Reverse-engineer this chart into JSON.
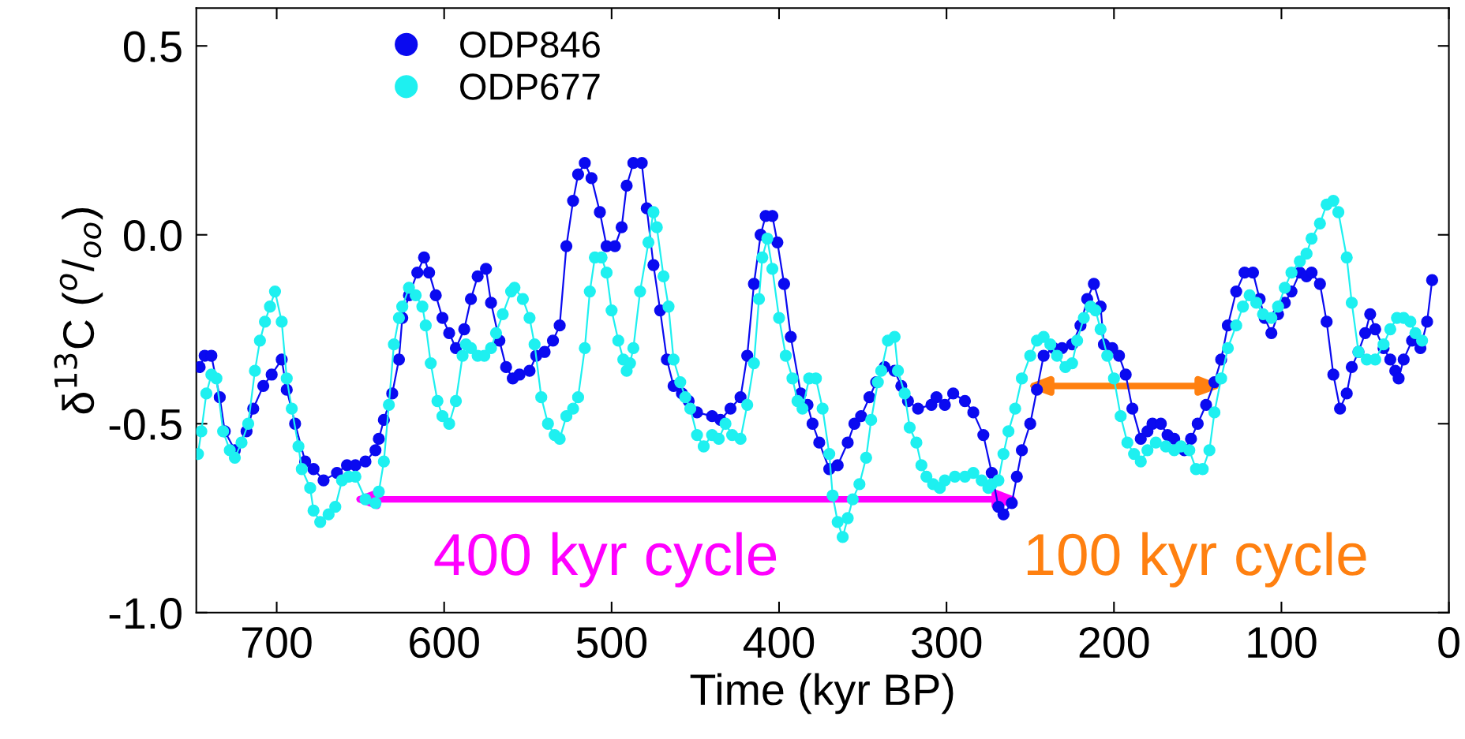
{
  "chart_data": {
    "type": "line",
    "xlabel": "Time (kyr BP)",
    "ylabel": "δ$^{13}$C ($^{o}$/$_{oo}$)",
    "xlim": [
      748,
      0
    ],
    "xticks": [
      700,
      600,
      500,
      400,
      300,
      200,
      100,
      0
    ],
    "ylim": [
      -1.0,
      0.6
    ],
    "yticks": [
      {
        "value": 0.5,
        "label": "0.5"
      },
      {
        "value": 0.0,
        "label": "0.0"
      },
      {
        "value": -0.5,
        "label": "-0.5"
      },
      {
        "value": -1.0,
        "label": "-1.0"
      }
    ],
    "marker": "circle",
    "line_style": "solid",
    "legend": "top left",
    "grid": false,
    "series": [
      {
        "name": "ODP846",
        "color": "#0a0af0",
        "x": [
          746,
          743,
          739,
          734,
          731,
          725,
          718,
          714,
          708,
          703,
          697,
          694,
          689,
          683,
          678,
          672,
          664,
          658,
          653,
          647,
          641,
          639,
          636,
          631,
          627,
          625,
          621,
          616,
          612,
          609,
          605,
          601,
          597,
          593,
          588,
          584,
          580,
          575,
          572,
          567,
          563,
          559,
          555,
          549,
          545,
          540,
          535,
          531,
          527,
          523,
          520,
          516,
          512,
          507,
          503,
          498,
          494,
          491,
          487,
          482,
          479,
          475,
          471,
          467,
          463,
          458,
          454,
          449,
          440,
          435,
          429,
          423,
          419,
          415,
          411,
          408,
          404,
          401,
          397,
          393,
          387,
          383,
          380,
          376,
          370,
          365,
          359,
          355,
          351,
          346,
          342,
          337,
          331,
          327,
          323,
          317,
          309,
          306,
          301,
          296,
          289,
          284,
          278,
          273,
          269,
          266,
          261,
          258,
          255,
          250,
          246,
          242,
          236,
          231,
          225,
          220,
          216,
          212,
          208,
          206,
          201,
          197,
          193,
          189,
          184,
          180,
          177,
          172,
          168,
          164,
          158,
          154,
          150,
          145,
          140,
          136,
          132,
          127,
          122,
          117,
          113,
          110,
          106,
          102,
          98,
          94,
          89,
          85,
          82,
          77,
          73,
          69,
          65,
          61,
          58,
          54,
          50,
          47,
          44,
          39,
          35,
          32,
          30,
          27,
          22,
          17,
          13,
          10
        ],
        "values": [
          -0.35,
          -0.32,
          -0.32,
          -0.43,
          -0.52,
          -0.57,
          -0.52,
          -0.46,
          -0.4,
          -0.37,
          -0.33,
          -0.41,
          -0.5,
          -0.6,
          -0.62,
          -0.65,
          -0.63,
          -0.61,
          -0.61,
          -0.6,
          -0.57,
          -0.54,
          -0.49,
          -0.42,
          -0.33,
          -0.22,
          -0.16,
          -0.1,
          -0.06,
          -0.1,
          -0.16,
          -0.22,
          -0.26,
          -0.3,
          -0.25,
          -0.17,
          -0.11,
          -0.09,
          -0.18,
          -0.28,
          -0.35,
          -0.38,
          -0.37,
          -0.36,
          -0.32,
          -0.31,
          -0.28,
          -0.24,
          -0.03,
          0.09,
          0.16,
          0.19,
          0.15,
          0.06,
          -0.03,
          -0.03,
          0.02,
          0.13,
          0.19,
          0.19,
          0.07,
          -0.08,
          -0.2,
          -0.33,
          -0.4,
          -0.42,
          -0.44,
          -0.47,
          -0.48,
          -0.49,
          -0.46,
          -0.43,
          -0.32,
          -0.13,
          0.0,
          0.05,
          0.05,
          -0.02,
          -0.13,
          -0.27,
          -0.42,
          -0.45,
          -0.5,
          -0.55,
          -0.62,
          -0.61,
          -0.55,
          -0.5,
          -0.48,
          -0.43,
          -0.39,
          -0.35,
          -0.36,
          -0.4,
          -0.44,
          -0.46,
          -0.45,
          -0.43,
          -0.45,
          -0.42,
          -0.44,
          -0.47,
          -0.53,
          -0.63,
          -0.72,
          -0.74,
          -0.71,
          -0.64,
          -0.57,
          -0.5,
          -0.41,
          -0.32,
          -0.3,
          -0.3,
          -0.29,
          -0.24,
          -0.17,
          -0.13,
          -0.19,
          -0.29,
          -0.3,
          -0.32,
          -0.37,
          -0.46,
          -0.54,
          -0.52,
          -0.5,
          -0.5,
          -0.53,
          -0.54,
          -0.57,
          -0.54,
          -0.5,
          -0.45,
          -0.39,
          -0.33,
          -0.24,
          -0.15,
          -0.1,
          -0.1,
          -0.17,
          -0.22,
          -0.26,
          -0.21,
          -0.18,
          -0.15,
          -0.1,
          -0.11,
          -0.1,
          -0.13,
          -0.23,
          -0.37,
          -0.46,
          -0.42,
          -0.35,
          -0.31,
          -0.26,
          -0.21,
          -0.25,
          -0.3,
          -0.33,
          -0.36,
          -0.38,
          -0.33,
          -0.28,
          -0.3,
          -0.23,
          -0.12
        ]
      },
      {
        "name": "ODP677",
        "color": "#1ef0f0",
        "x": [
          747,
          745,
          742,
          739,
          736,
          732,
          728,
          725,
          721,
          717,
          713,
          710,
          707,
          704,
          701,
          697,
          694,
          691,
          687,
          685,
          680,
          678,
          674,
          669,
          665,
          661,
          657,
          653,
          647,
          641,
          639,
          636,
          633,
          630,
          627,
          625,
          621,
          617,
          613,
          611,
          608,
          604,
          601,
          597,
          593,
          589,
          587,
          584,
          580,
          576,
          572,
          569,
          565,
          560,
          558,
          553,
          549,
          546,
          542,
          538,
          534,
          531,
          527,
          523,
          520,
          516,
          513,
          510,
          506,
          503,
          500,
          496,
          493,
          491,
          489,
          487,
          483,
          478,
          475,
          473,
          469,
          466,
          463,
          459,
          456,
          453,
          449,
          445,
          440,
          436,
          432,
          428,
          423,
          419,
          415,
          412,
          410,
          407,
          404,
          400,
          396,
          392,
          389,
          386,
          382,
          378,
          374,
          370,
          368,
          365,
          362,
          359,
          356,
          352,
          348,
          345,
          341,
          339,
          335,
          331,
          329,
          325,
          322,
          318,
          315,
          312,
          308,
          304,
          301,
          295,
          289,
          284,
          279,
          275,
          273,
          269,
          266,
          263,
          259,
          255,
          250,
          246,
          242,
          238,
          234,
          229,
          225,
          222,
          218,
          214,
          211,
          208,
          204,
          200,
          196,
          192,
          188,
          184,
          180,
          175,
          169,
          164,
          160,
          155,
          151,
          147,
          143,
          140,
          136,
          132,
          127,
          123,
          119,
          115,
          111,
          106,
          102,
          98,
          94,
          89,
          85,
          82,
          77,
          73,
          69,
          66,
          61,
          58,
          54,
          49,
          44,
          39,
          35,
          31,
          27,
          23,
          20,
          16
        ],
        "values": [
          -0.58,
          -0.52,
          -0.42,
          -0.37,
          -0.38,
          -0.52,
          -0.57,
          -0.59,
          -0.55,
          -0.5,
          -0.36,
          -0.28,
          -0.23,
          -0.19,
          -0.15,
          -0.23,
          -0.38,
          -0.46,
          -0.56,
          -0.62,
          -0.67,
          -0.73,
          -0.76,
          -0.74,
          -0.72,
          -0.65,
          -0.64,
          -0.64,
          -0.7,
          -0.71,
          -0.68,
          -0.6,
          -0.45,
          -0.29,
          -0.22,
          -0.19,
          -0.14,
          -0.16,
          -0.19,
          -0.24,
          -0.34,
          -0.44,
          -0.48,
          -0.5,
          -0.44,
          -0.32,
          -0.29,
          -0.3,
          -0.32,
          -0.32,
          -0.3,
          -0.26,
          -0.21,
          -0.15,
          -0.14,
          -0.17,
          -0.22,
          -0.29,
          -0.43,
          -0.5,
          -0.53,
          -0.54,
          -0.48,
          -0.46,
          -0.43,
          -0.3,
          -0.15,
          -0.06,
          -0.06,
          -0.1,
          -0.2,
          -0.28,
          -0.33,
          -0.36,
          -0.34,
          -0.3,
          -0.15,
          -0.02,
          0.06,
          0.02,
          -0.11,
          -0.19,
          -0.33,
          -0.39,
          -0.43,
          -0.46,
          -0.53,
          -0.56,
          -0.53,
          -0.54,
          -0.5,
          -0.53,
          -0.54,
          -0.45,
          -0.34,
          -0.17,
          -0.06,
          -0.01,
          -0.09,
          -0.22,
          -0.32,
          -0.38,
          -0.44,
          -0.46,
          -0.38,
          -0.38,
          -0.46,
          -0.58,
          -0.69,
          -0.76,
          -0.8,
          -0.75,
          -0.7,
          -0.66,
          -0.59,
          -0.49,
          -0.39,
          -0.36,
          -0.28,
          -0.27,
          -0.36,
          -0.42,
          -0.51,
          -0.55,
          -0.61,
          -0.64,
          -0.66,
          -0.67,
          -0.65,
          -0.64,
          -0.64,
          -0.63,
          -0.65,
          -0.67,
          -0.66,
          -0.65,
          -0.58,
          -0.52,
          -0.46,
          -0.38,
          -0.32,
          -0.28,
          -0.27,
          -0.29,
          -0.32,
          -0.35,
          -0.34,
          -0.28,
          -0.22,
          -0.19,
          -0.2,
          -0.25,
          -0.32,
          -0.38,
          -0.48,
          -0.55,
          -0.58,
          -0.6,
          -0.57,
          -0.55,
          -0.56,
          -0.57,
          -0.56,
          -0.57,
          -0.62,
          -0.62,
          -0.57,
          -0.47,
          -0.38,
          -0.3,
          -0.24,
          -0.19,
          -0.16,
          -0.18,
          -0.21,
          -0.22,
          -0.19,
          -0.14,
          -0.1,
          -0.07,
          -0.05,
          -0.01,
          0.03,
          0.08,
          0.09,
          0.06,
          -0.06,
          -0.18,
          -0.31,
          -0.33,
          -0.33,
          -0.29,
          -0.25,
          -0.22,
          -0.22,
          -0.23,
          -0.26,
          -0.28
        ]
      }
    ],
    "annotations": [
      "400 kyr cycle",
      "100 kyr cycle"
    ]
  }
}
